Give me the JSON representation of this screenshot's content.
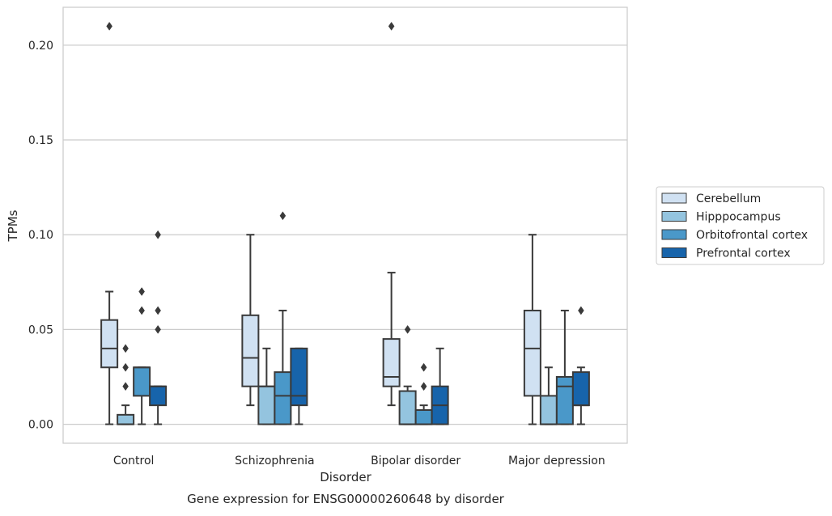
{
  "chart_data": {
    "type": "box",
    "title": "Gene expression for ENSG00000260648 by disorder",
    "xlabel": "Disorder",
    "ylabel": "TPMs",
    "ylim": [
      -0.01,
      0.22
    ],
    "yticks": [
      0.0,
      0.05,
      0.1,
      0.15,
      0.2
    ],
    "ytick_labels": [
      "0.00",
      "0.05",
      "0.10",
      "0.15",
      "0.20"
    ],
    "grid": "horizontal",
    "legend_position": "right",
    "categories": [
      "Control",
      "Schizophrenia",
      "Bipolar disorder",
      "Major depression"
    ],
    "series": [
      {
        "name": "Cerebellum",
        "color": "#d0e1f2",
        "boxes": [
          {
            "whisker_low": 0.0,
            "q1": 0.03,
            "median": 0.04,
            "q3": 0.055,
            "whisker_high": 0.07,
            "outliers": [
              0.21
            ]
          },
          {
            "whisker_low": 0.01,
            "q1": 0.02,
            "median": 0.035,
            "q3": 0.0575,
            "whisker_high": 0.1,
            "outliers": []
          },
          {
            "whisker_low": 0.01,
            "q1": 0.02,
            "median": 0.025,
            "q3": 0.045,
            "whisker_high": 0.08,
            "outliers": [
              0.21
            ]
          },
          {
            "whisker_low": 0.0,
            "q1": 0.015,
            "median": 0.04,
            "q3": 0.06,
            "whisker_high": 0.1,
            "outliers": []
          }
        ]
      },
      {
        "name": "Hipppocampus",
        "color": "#94c4df",
        "boxes": [
          {
            "whisker_low": 0.0,
            "q1": 0.0,
            "median": 0.0,
            "q3": 0.005,
            "whisker_high": 0.01,
            "outliers": [
              0.02,
              0.03,
              0.04
            ]
          },
          {
            "whisker_low": 0.0,
            "q1": 0.0,
            "median": 0.02,
            "q3": 0.02,
            "whisker_high": 0.04,
            "outliers": []
          },
          {
            "whisker_low": 0.0,
            "q1": 0.0,
            "median": 0.0,
            "q3": 0.0175,
            "whisker_high": 0.02,
            "outliers": [
              0.05
            ]
          },
          {
            "whisker_low": 0.0,
            "q1": 0.0,
            "median": 0.0,
            "q3": 0.015,
            "whisker_high": 0.03,
            "outliers": []
          }
        ]
      },
      {
        "name": "Orbitofrontal cortex",
        "color": "#4a98c9",
        "boxes": [
          {
            "whisker_low": 0.0,
            "q1": 0.015,
            "median": 0.03,
            "q3": 0.03,
            "whisker_high": 0.03,
            "outliers": [
              0.06,
              0.07
            ]
          },
          {
            "whisker_low": 0.0,
            "q1": 0.0,
            "median": 0.015,
            "q3": 0.0275,
            "whisker_high": 0.06,
            "outliers": [
              0.11
            ]
          },
          {
            "whisker_low": 0.0,
            "q1": 0.0,
            "median": 0.0,
            "q3": 0.0075,
            "whisker_high": 0.01,
            "outliers": [
              0.02,
              0.03
            ]
          },
          {
            "whisker_low": 0.0,
            "q1": 0.0,
            "median": 0.02,
            "q3": 0.025,
            "whisker_high": 0.06,
            "outliers": []
          }
        ]
      },
      {
        "name": "Prefrontal cortex",
        "color": "#1764ab",
        "boxes": [
          {
            "whisker_low": 0.0,
            "q1": 0.01,
            "median": 0.02,
            "q3": 0.02,
            "whisker_high": 0.02,
            "outliers": [
              0.05,
              0.06,
              0.1
            ]
          },
          {
            "whisker_low": 0.0,
            "q1": 0.01,
            "median": 0.015,
            "q3": 0.04,
            "whisker_high": 0.04,
            "outliers": []
          },
          {
            "whisker_low": 0.0,
            "q1": 0.0,
            "median": 0.01,
            "q3": 0.02,
            "whisker_high": 0.04,
            "outliers": []
          },
          {
            "whisker_low": 0.0,
            "q1": 0.01,
            "median": 0.01,
            "q3": 0.0275,
            "whisker_high": 0.03,
            "outliers": [
              0.06
            ]
          }
        ]
      }
    ]
  }
}
